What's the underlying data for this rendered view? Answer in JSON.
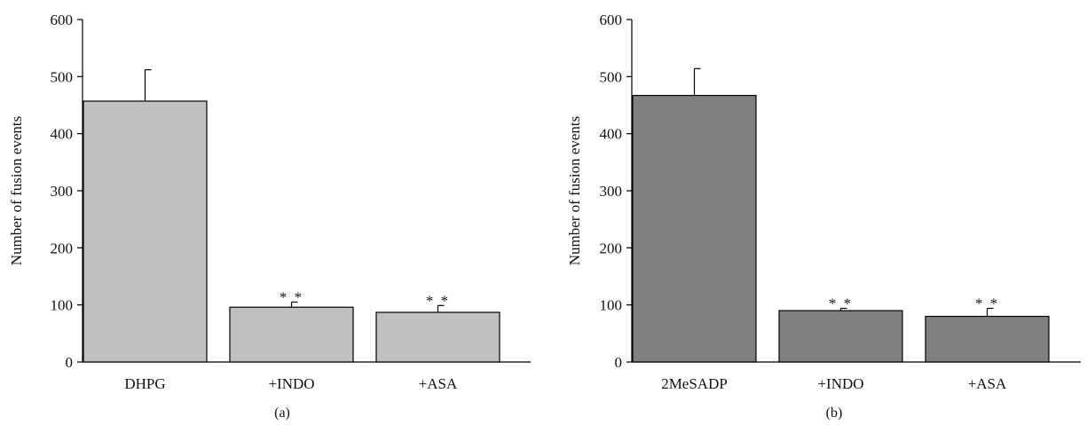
{
  "chart_data": [
    {
      "type": "bar",
      "panel_label": "(a)",
      "ylabel": "Number of fusion events",
      "ylim": [
        0,
        600
      ],
      "yticks": [
        0,
        100,
        200,
        300,
        400,
        500,
        600
      ],
      "categories": [
        "DHPG",
        "+INDO",
        "+ASA"
      ],
      "values": [
        457,
        96,
        87
      ],
      "errors": [
        55,
        9,
        12
      ],
      "annotations": [
        "",
        "**",
        "**"
      ],
      "bar_color": "#c0c0c0",
      "grid": false
    },
    {
      "type": "bar",
      "panel_label": "(b)",
      "ylabel": "Number of fusion events",
      "ylim": [
        0,
        600
      ],
      "yticks": [
        0,
        100,
        200,
        300,
        400,
        500,
        600
      ],
      "categories": [
        "2MeSADP",
        "+INDO",
        "+ASA"
      ],
      "values": [
        467,
        90,
        80
      ],
      "errors": [
        47,
        4,
        14
      ],
      "annotations": [
        "",
        "**",
        "**"
      ],
      "bar_color": "#808080",
      "grid": false
    }
  ]
}
